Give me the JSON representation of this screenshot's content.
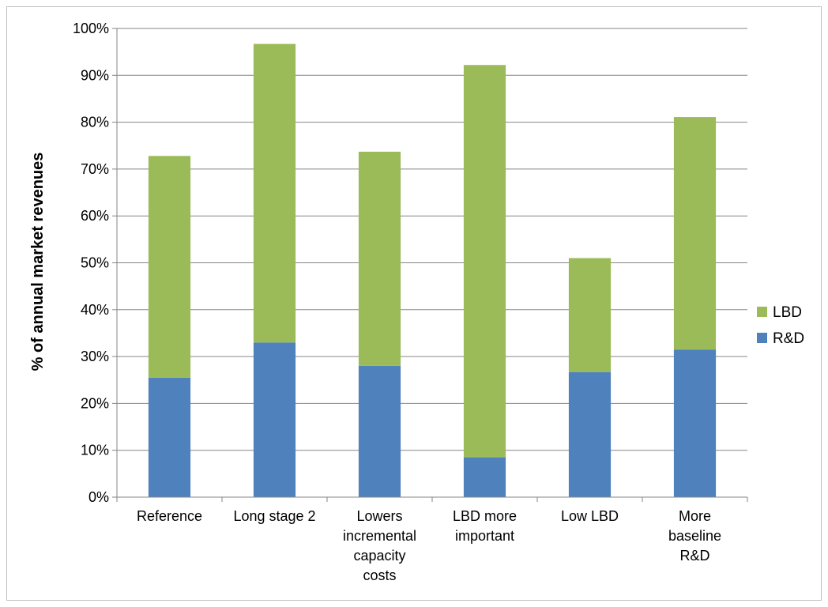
{
  "chart_data": {
    "type": "bar",
    "stacked": true,
    "title": "",
    "xlabel": "",
    "ylabel": "% of annual market revenues",
    "ylim": [
      0,
      100
    ],
    "y_ticks": [
      "0%",
      "10%",
      "20%",
      "30%",
      "40%",
      "50%",
      "60%",
      "70%",
      "80%",
      "90%",
      "100%"
    ],
    "grid": true,
    "legend_position": "right",
    "categories": [
      [
        "Reference"
      ],
      [
        "Long stage 2"
      ],
      [
        "Lowers",
        "incremental",
        "capacity",
        "costs"
      ],
      [
        "LBD more",
        "important"
      ],
      [
        "Low LBD"
      ],
      [
        "More",
        "baseline",
        "R&D"
      ]
    ],
    "series": [
      {
        "name": "R&D",
        "color": "#4f81bd",
        "values": [
          25.5,
          33,
          28,
          8.5,
          26.7,
          31.5
        ]
      },
      {
        "name": "LBD",
        "color": "#9bbb59",
        "values": [
          47.3,
          63.7,
          45.7,
          83.7,
          24.3,
          49.6
        ]
      }
    ],
    "legend_order": [
      "LBD",
      "R&D"
    ]
  }
}
